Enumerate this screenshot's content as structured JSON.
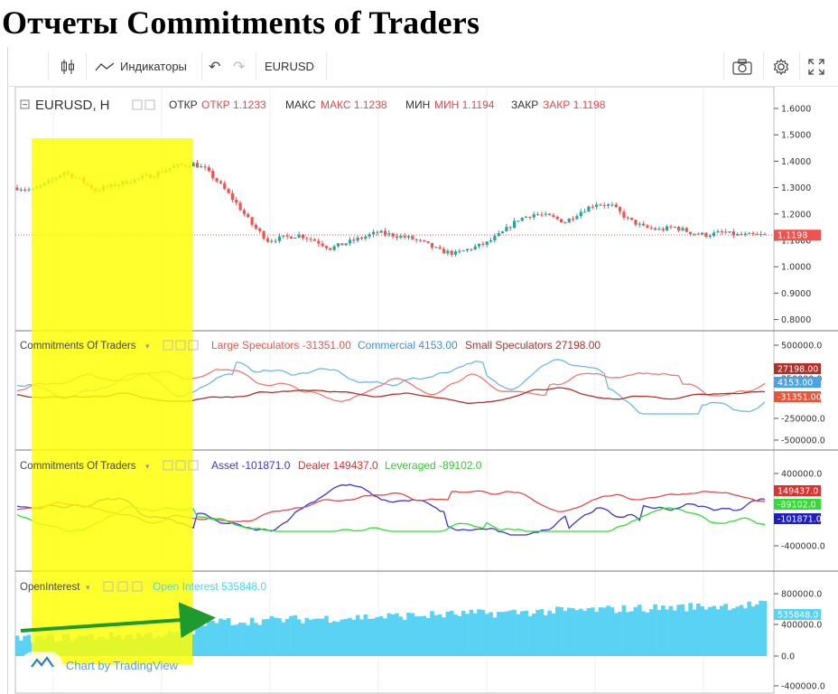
{
  "title": "Отчеты Commitments of Traders",
  "toolbar": {
    "indicators_label": "Индикаторы",
    "symbol": "EURUSD"
  },
  "main_pane": {
    "symbol_label": "EURUSD, H",
    "open_label": "ОТКР",
    "open_value": "ОТКР 1.1233",
    "high_label": "МАКС",
    "high_value": "МАКС 1.1238",
    "low_label": "МИН",
    "low_value": "МИН 1.1194",
    "close_label": "ЗАКР",
    "close_value": "ЗАКР 1.1198",
    "last_price_tag": "1.1198"
  },
  "pane2": {
    "label": "Commitments Of Traders",
    "legend": [
      "Large Speculators -31351.00",
      "Commercial 4153.00",
      "Small Speculators 27198.00"
    ]
  },
  "pane3": {
    "label": "Commitments Of Traders",
    "legend": [
      "Asset -101871.0",
      "Dealer 149437.0",
      "Leveraged -89102.0"
    ]
  },
  "pane4": {
    "label": "OpenInterest",
    "legend": [
      "Open Interest 535848.0"
    ]
  },
  "watermark": "Chart by TradingView",
  "colors": {
    "up": "#26a69a",
    "down": "#ef5350",
    "large_spec": "#ef7a74",
    "commercial": "#6fb7e9",
    "small_spec": "#b0312c",
    "asset": "#3b36d6",
    "dealer": "#e04b4b",
    "leveraged": "#33dd33",
    "open_interest": "#5ad2f4",
    "highlight": "#ffff00",
    "arrow": "#1f9a2c"
  },
  "chart_data": [
    {
      "type": "candlestick",
      "series_name": "EURUSD, H",
      "ylim": [
        0.78,
        1.62
      ],
      "y_ticks": [
        "1.6000",
        "1.5000",
        "1.4000",
        "1.3000",
        "1.2000",
        "1.1000",
        "1.0000",
        "0.9000",
        "0.8000"
      ],
      "close_path": [
        [
          0,
          1.3
        ],
        [
          4,
          1.29
        ],
        [
          8,
          1.32
        ],
        [
          12,
          1.36
        ],
        [
          16,
          1.33
        ],
        [
          20,
          1.29
        ],
        [
          25,
          1.31
        ],
        [
          30,
          1.33
        ],
        [
          35,
          1.35
        ],
        [
          40,
          1.38
        ],
        [
          45,
          1.39
        ],
        [
          48,
          1.37
        ],
        [
          52,
          1.31
        ],
        [
          56,
          1.24
        ],
        [
          60,
          1.16
        ],
        [
          64,
          1.1
        ],
        [
          68,
          1.11
        ],
        [
          72,
          1.12
        ],
        [
          76,
          1.1
        ],
        [
          80,
          1.07
        ],
        [
          84,
          1.09
        ],
        [
          88,
          1.11
        ],
        [
          92,
          1.13
        ],
        [
          96,
          1.12
        ],
        [
          100,
          1.11
        ],
        [
          104,
          1.09
        ],
        [
          108,
          1.06
        ],
        [
          112,
          1.05
        ],
        [
          116,
          1.07
        ],
        [
          120,
          1.09
        ],
        [
          124,
          1.13
        ],
        [
          128,
          1.18
        ],
        [
          132,
          1.2
        ],
        [
          136,
          1.19
        ],
        [
          140,
          1.17
        ],
        [
          144,
          1.21
        ],
        [
          148,
          1.24
        ],
        [
          152,
          1.23
        ],
        [
          156,
          1.18
        ],
        [
          160,
          1.15
        ],
        [
          164,
          1.14
        ],
        [
          168,
          1.15
        ],
        [
          172,
          1.13
        ],
        [
          176,
          1.12
        ],
        [
          180,
          1.13
        ],
        [
          184,
          1.12
        ],
        [
          188,
          1.12
        ],
        [
          191,
          1.12
        ]
      ],
      "last": {
        "open": 1.1233,
        "high": 1.1238,
        "low": 1.1194,
        "close": 1.1198
      }
    },
    {
      "type": "line",
      "name": "Commitments Of Traders",
      "y_ticks": [
        "500000.0",
        "250000.0",
        "-250000.0",
        "-500000.0"
      ],
      "series": [
        {
          "name": "Large Speculators",
          "last": -31351.0
        },
        {
          "name": "Commercial",
          "last": 4153.0
        },
        {
          "name": "Small Speculators",
          "last": 27198.0
        }
      ]
    },
    {
      "type": "line",
      "name": "Commitments Of Traders",
      "y_ticks": [
        "400000.0",
        "-400000.0"
      ],
      "series": [
        {
          "name": "Asset",
          "last": -101871.0
        },
        {
          "name": "Dealer",
          "last": 149437.0
        },
        {
          "name": "Leveraged",
          "last": -89102.0
        }
      ]
    },
    {
      "type": "area",
      "name": "OpenInterest",
      "y_ticks": [
        "800000.0",
        "400000.0",
        "0.0",
        "-400000.0"
      ],
      "series": [
        {
          "name": "Open Interest",
          "last": 535848.0
        }
      ]
    }
  ]
}
